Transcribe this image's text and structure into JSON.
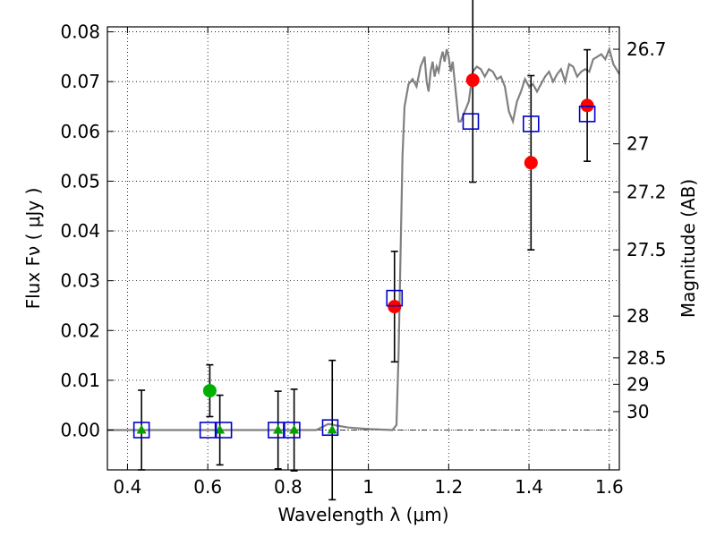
{
  "chart_data": {
    "type": "scatter",
    "xlabel": "Wavelength  λ (μm)",
    "ylabel": "Flux  Fν  ( μJy )",
    "y2label": "Magnitude (AB)",
    "xlim": [
      0.35,
      1.625
    ],
    "ylim": [
      -0.008,
      0.081
    ],
    "xticks": [
      {
        "value": 0.4,
        "label": "0.4"
      },
      {
        "value": 0.6,
        "label": "0.6"
      },
      {
        "value": 0.8,
        "label": "0.8"
      },
      {
        "value": 1.0,
        "label": "1"
      },
      {
        "value": 1.2,
        "label": "1.2"
      },
      {
        "value": 1.4,
        "label": "1.4"
      },
      {
        "value": 1.6,
        "label": "1.6"
      }
    ],
    "yticks": [
      {
        "value": 0.0,
        "label": "0.00"
      },
      {
        "value": 0.01,
        "label": "0.01"
      },
      {
        "value": 0.02,
        "label": "0.02"
      },
      {
        "value": 0.03,
        "label": "0.03"
      },
      {
        "value": 0.04,
        "label": "0.04"
      },
      {
        "value": 0.05,
        "label": "0.05"
      },
      {
        "value": 0.06,
        "label": "0.06"
      },
      {
        "value": 0.07,
        "label": "0.07"
      },
      {
        "value": 0.08,
        "label": "0.08"
      }
    ],
    "y2ticks": [
      {
        "flux": 0.0765,
        "label": "26.7"
      },
      {
        "flux": 0.0575,
        "label": "27"
      },
      {
        "flux": 0.0478,
        "label": "27.2"
      },
      {
        "flux": 0.0362,
        "label": "27.5"
      },
      {
        "flux": 0.0229,
        "label": "28"
      },
      {
        "flux": 0.0145,
        "label": "28.5"
      },
      {
        "flux": 0.0092,
        "label": "29"
      },
      {
        "flux": 0.0037,
        "label": "30"
      }
    ],
    "grid": true,
    "zero_line": true,
    "colors": {
      "model": "#808080",
      "red_points": "#ff0000",
      "green_points": "#00b000",
      "triangles": "#00a000",
      "squares": "#0000cc",
      "errorbars": "#000000"
    },
    "model_sed": {
      "x": [
        0.35,
        0.87,
        0.9,
        0.95,
        1.0,
        1.06,
        1.07,
        1.075,
        1.08,
        1.085,
        1.09,
        1.1,
        1.11,
        1.12,
        1.13,
        1.14,
        1.145,
        1.15,
        1.155,
        1.16,
        1.165,
        1.17,
        1.175,
        1.18,
        1.185,
        1.19,
        1.195,
        1.2,
        1.205,
        1.21,
        1.22,
        1.225,
        1.23,
        1.24,
        1.25,
        1.26,
        1.27,
        1.28,
        1.29,
        1.3,
        1.31,
        1.32,
        1.33,
        1.34,
        1.35,
        1.36,
        1.37,
        1.38,
        1.39,
        1.4,
        1.41,
        1.42,
        1.43,
        1.44,
        1.45,
        1.46,
        1.47,
        1.48,
        1.49,
        1.5,
        1.51,
        1.52,
        1.53,
        1.54,
        1.55,
        1.56,
        1.57,
        1.58,
        1.59,
        1.6,
        1.61,
        1.625
      ],
      "y": [
        0.0,
        0.0,
        0.0012,
        0.0005,
        0.0002,
        0.0,
        0.001,
        0.015,
        0.035,
        0.055,
        0.065,
        0.0695,
        0.0705,
        0.069,
        0.073,
        0.075,
        0.07,
        0.068,
        0.072,
        0.074,
        0.071,
        0.073,
        0.072,
        0.0745,
        0.076,
        0.074,
        0.0765,
        0.075,
        0.072,
        0.074,
        0.066,
        0.062,
        0.062,
        0.064,
        0.066,
        0.072,
        0.073,
        0.0725,
        0.071,
        0.0725,
        0.072,
        0.0705,
        0.071,
        0.069,
        0.064,
        0.062,
        0.066,
        0.068,
        0.0705,
        0.069,
        0.0695,
        0.068,
        0.0695,
        0.071,
        0.072,
        0.07,
        0.0715,
        0.0725,
        0.07,
        0.0735,
        0.073,
        0.071,
        0.072,
        0.0725,
        0.072,
        0.0745,
        0.075,
        0.0755,
        0.0745,
        0.0765,
        0.0735,
        0.0715
      ]
    },
    "model_photometry": {
      "x": [
        0.435,
        0.6,
        0.64,
        0.77,
        0.81,
        0.905,
        1.065,
        1.255,
        1.405,
        1.545
      ],
      "y": [
        0.0,
        0.0,
        0.0,
        0.0,
        0.0,
        0.0005,
        0.0265,
        0.062,
        0.0615,
        0.0635
      ]
    },
    "detections": {
      "x": [
        1.065,
        1.26,
        1.405,
        1.545
      ],
      "y": [
        0.0248,
        0.0703,
        0.0537,
        0.0652
      ],
      "yerr": [
        0.0111,
        0.0205,
        0.0175,
        0.0112
      ]
    },
    "low_sn_detection": {
      "x": [
        0.605
      ],
      "y": [
        0.0079
      ],
      "yerr": [
        0.0052
      ]
    },
    "upper_limits": {
      "x": [
        0.435,
        0.63,
        0.775,
        0.815,
        0.91
      ],
      "y": [
        0.0,
        0.0,
        0.0,
        0.0,
        0.0
      ],
      "yerr": [
        0.008,
        0.007,
        0.0078,
        0.0082,
        0.014
      ]
    }
  }
}
